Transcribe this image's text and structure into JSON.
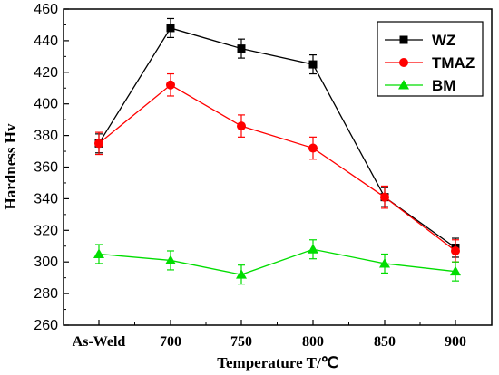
{
  "chart_data": {
    "type": "line",
    "title": "",
    "xlabel": "Temperature T/℃",
    "ylabel": "Hardness Hv",
    "categories": [
      "As-Weld",
      "700",
      "750",
      "800",
      "850",
      "900"
    ],
    "ylim": [
      260,
      460
    ],
    "yticks": [
      260,
      280,
      300,
      320,
      340,
      360,
      380,
      400,
      420,
      440,
      460
    ],
    "grid": false,
    "legend_position": "top-right",
    "error_bars": true,
    "series": [
      {
        "name": "WZ",
        "color": "#000000",
        "marker": "square",
        "values": [
          375,
          448,
          435,
          425,
          341,
          309
        ],
        "errors": [
          6,
          6,
          6,
          6,
          6,
          6
        ]
      },
      {
        "name": "TMAZ",
        "color": "#ff0000",
        "marker": "circle",
        "values": [
          375,
          412,
          386,
          372,
          341,
          307
        ],
        "errors": [
          7,
          7,
          7,
          7,
          7,
          7
        ]
      },
      {
        "name": "BM",
        "color": "#00dd00",
        "marker": "triangle",
        "values": [
          305,
          301,
          292,
          308,
          299,
          294
        ],
        "errors": [
          6,
          6,
          6,
          6,
          6,
          6
        ]
      }
    ]
  }
}
